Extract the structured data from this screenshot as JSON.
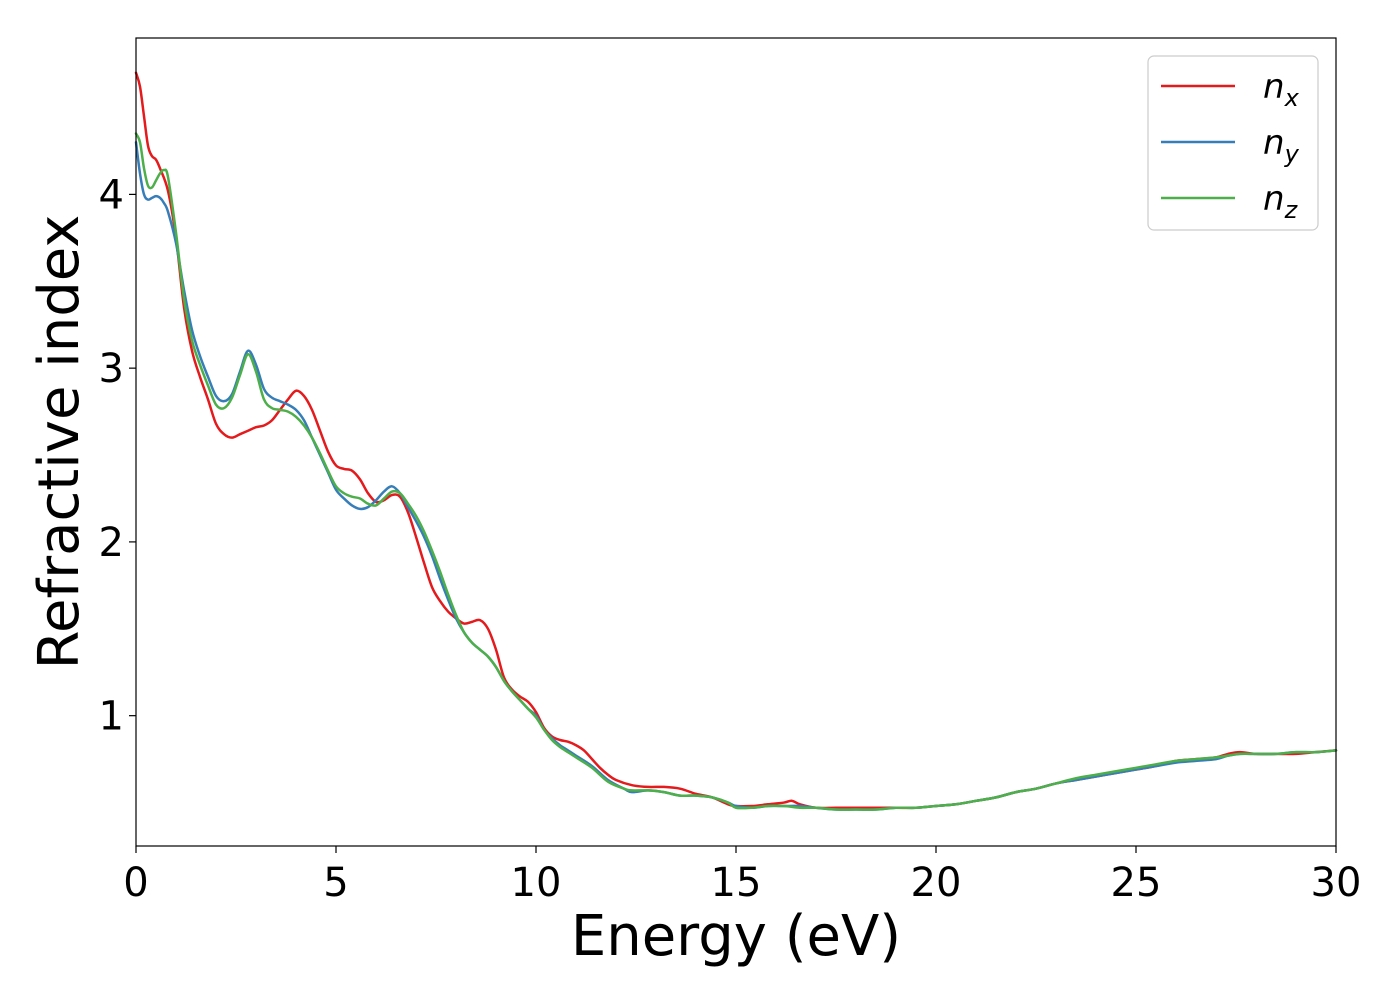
{
  "chart_data": {
    "type": "line",
    "xlabel": "Energy (eV)",
    "ylabel": "Refractive index",
    "xlim": [
      0,
      30
    ],
    "ylim": [
      0.25,
      4.9
    ],
    "xticks": [
      0,
      5,
      10,
      15,
      20,
      25,
      30
    ],
    "yticks": [
      1,
      2,
      3,
      4
    ],
    "grid": false,
    "legend_position": "top-right",
    "series": [
      {
        "name": "n",
        "subscript": "x",
        "color": "#e41a1c",
        "x": [
          0,
          0.1,
          0.2,
          0.3,
          0.4,
          0.5,
          0.6,
          0.8,
          1.0,
          1.2,
          1.4,
          1.6,
          1.8,
          2.0,
          2.2,
          2.4,
          2.6,
          2.8,
          3.0,
          3.2,
          3.4,
          3.6,
          3.8,
          4.0,
          4.2,
          4.4,
          4.6,
          4.8,
          5.0,
          5.2,
          5.4,
          5.6,
          5.8,
          6.0,
          6.2,
          6.4,
          6.6,
          6.8,
          7.0,
          7.2,
          7.4,
          7.6,
          7.8,
          8.0,
          8.2,
          8.4,
          8.6,
          8.8,
          9.0,
          9.2,
          9.4,
          9.6,
          9.8,
          10.0,
          10.2,
          10.4,
          10.6,
          10.8,
          11.0,
          11.2,
          11.4,
          11.6,
          11.8,
          12.0,
          12.4,
          12.8,
          13.2,
          13.6,
          14.0,
          14.4,
          14.8,
          15.0,
          15.4,
          15.8,
          16.2,
          16.4,
          16.6,
          17.0,
          17.5,
          18.0,
          18.5,
          19.0,
          19.5,
          20.0,
          20.5,
          21.0,
          21.5,
          22.0,
          22.5,
          23.0,
          23.5,
          24.0,
          24.5,
          25.0,
          25.5,
          26.0,
          26.5,
          27.0,
          27.3,
          27.6,
          28.0,
          28.5,
          29.0,
          29.5,
          30.0
        ],
        "y": [
          4.7,
          4.62,
          4.45,
          4.28,
          4.22,
          4.2,
          4.15,
          4.02,
          3.75,
          3.35,
          3.1,
          2.95,
          2.82,
          2.68,
          2.62,
          2.6,
          2.62,
          2.64,
          2.66,
          2.67,
          2.7,
          2.76,
          2.82,
          2.87,
          2.84,
          2.76,
          2.64,
          2.52,
          2.44,
          2.42,
          2.41,
          2.36,
          2.28,
          2.23,
          2.24,
          2.27,
          2.26,
          2.17,
          2.03,
          1.88,
          1.74,
          1.66,
          1.6,
          1.56,
          1.53,
          1.54,
          1.55,
          1.5,
          1.38,
          1.22,
          1.15,
          1.11,
          1.08,
          1.02,
          0.93,
          0.88,
          0.86,
          0.85,
          0.83,
          0.8,
          0.75,
          0.7,
          0.66,
          0.63,
          0.6,
          0.59,
          0.59,
          0.58,
          0.55,
          0.53,
          0.49,
          0.48,
          0.48,
          0.49,
          0.5,
          0.51,
          0.49,
          0.47,
          0.47,
          0.47,
          0.47,
          0.47,
          0.47,
          0.48,
          0.49,
          0.51,
          0.53,
          0.56,
          0.58,
          0.61,
          0.63,
          0.65,
          0.67,
          0.69,
          0.71,
          0.74,
          0.75,
          0.76,
          0.78,
          0.79,
          0.78,
          0.78,
          0.78,
          0.79,
          0.8
        ]
      },
      {
        "name": "n",
        "subscript": "y",
        "color": "#377eb8",
        "x": [
          0,
          0.1,
          0.2,
          0.3,
          0.4,
          0.5,
          0.6,
          0.7,
          0.8,
          1.0,
          1.2,
          1.4,
          1.6,
          1.8,
          2.0,
          2.2,
          2.4,
          2.6,
          2.8,
          3.0,
          3.2,
          3.4,
          3.6,
          3.8,
          4.0,
          4.2,
          4.4,
          4.6,
          4.8,
          5.0,
          5.2,
          5.4,
          5.6,
          5.8,
          6.0,
          6.2,
          6.4,
          6.6,
          6.8,
          7.0,
          7.2,
          7.4,
          7.6,
          7.8,
          8.0,
          8.2,
          8.4,
          8.6,
          8.8,
          9.0,
          9.2,
          9.4,
          9.6,
          9.8,
          10.0,
          10.2,
          10.4,
          10.6,
          10.8,
          11.0,
          11.4,
          11.8,
          12.2,
          12.4,
          12.8,
          13.2,
          13.6,
          14.0,
          14.4,
          14.8,
          15.0,
          15.4,
          15.8,
          16.2,
          16.6,
          17.0,
          17.5,
          18.0,
          18.5,
          19.0,
          19.5,
          20.0,
          20.5,
          21.0,
          21.5,
          22.0,
          22.5,
          23.0,
          23.5,
          24.0,
          24.5,
          25.0,
          25.5,
          26.0,
          26.5,
          27.0,
          27.3,
          27.6,
          28.0,
          28.5,
          29.0,
          29.5,
          30.0
        ],
        "y": [
          4.3,
          4.12,
          4.0,
          3.97,
          3.98,
          3.99,
          3.98,
          3.95,
          3.9,
          3.72,
          3.45,
          3.22,
          3.07,
          2.95,
          2.84,
          2.81,
          2.85,
          2.98,
          3.1,
          3.02,
          2.88,
          2.83,
          2.81,
          2.79,
          2.76,
          2.7,
          2.6,
          2.5,
          2.4,
          2.3,
          2.25,
          2.21,
          2.19,
          2.2,
          2.24,
          2.29,
          2.32,
          2.28,
          2.2,
          2.12,
          2.03,
          1.92,
          1.79,
          1.67,
          1.56,
          1.48,
          1.42,
          1.38,
          1.34,
          1.28,
          1.2,
          1.14,
          1.09,
          1.04,
          1.0,
          0.92,
          0.87,
          0.83,
          0.8,
          0.77,
          0.71,
          0.63,
          0.58,
          0.56,
          0.57,
          0.56,
          0.54,
          0.54,
          0.53,
          0.5,
          0.48,
          0.47,
          0.48,
          0.48,
          0.48,
          0.47,
          0.46,
          0.46,
          0.46,
          0.47,
          0.47,
          0.48,
          0.49,
          0.51,
          0.53,
          0.56,
          0.58,
          0.61,
          0.63,
          0.65,
          0.67,
          0.69,
          0.71,
          0.73,
          0.74,
          0.75,
          0.77,
          0.78,
          0.78,
          0.78,
          0.79,
          0.79,
          0.8
        ]
      },
      {
        "name": "n",
        "subscript": "z",
        "color": "#4daf4a",
        "x": [
          0,
          0.1,
          0.2,
          0.3,
          0.4,
          0.5,
          0.6,
          0.7,
          0.8,
          1.0,
          1.2,
          1.4,
          1.6,
          1.8,
          2.0,
          2.2,
          2.4,
          2.6,
          2.8,
          3.0,
          3.2,
          3.4,
          3.6,
          3.8,
          4.0,
          4.2,
          4.4,
          4.6,
          4.8,
          5.0,
          5.2,
          5.4,
          5.6,
          5.8,
          6.0,
          6.2,
          6.4,
          6.6,
          6.8,
          7.0,
          7.2,
          7.4,
          7.6,
          7.8,
          8.0,
          8.2,
          8.4,
          8.6,
          8.8,
          9.0,
          9.2,
          9.4,
          9.6,
          9.8,
          10.0,
          10.2,
          10.4,
          10.6,
          10.8,
          11.0,
          11.4,
          11.8,
          12.2,
          12.4,
          12.8,
          13.2,
          13.6,
          14.0,
          14.4,
          14.8,
          15.0,
          15.4,
          15.8,
          16.2,
          16.6,
          17.0,
          17.5,
          18.0,
          18.5,
          19.0,
          19.5,
          20.0,
          20.5,
          21.0,
          21.5,
          22.0,
          22.5,
          23.0,
          23.5,
          24.0,
          24.5,
          25.0,
          25.5,
          26.0,
          26.5,
          27.0,
          27.3,
          27.6,
          28.0,
          28.5,
          29.0,
          29.5,
          30.0
        ],
        "y": [
          4.35,
          4.3,
          4.15,
          4.05,
          4.04,
          4.08,
          4.12,
          4.14,
          4.1,
          3.78,
          3.4,
          3.16,
          3.02,
          2.9,
          2.79,
          2.77,
          2.83,
          2.96,
          3.08,
          2.98,
          2.82,
          2.77,
          2.76,
          2.75,
          2.72,
          2.67,
          2.6,
          2.51,
          2.41,
          2.32,
          2.28,
          2.26,
          2.25,
          2.22,
          2.21,
          2.25,
          2.29,
          2.28,
          2.22,
          2.15,
          2.06,
          1.95,
          1.83,
          1.7,
          1.58,
          1.48,
          1.42,
          1.38,
          1.34,
          1.28,
          1.2,
          1.14,
          1.09,
          1.04,
          0.99,
          0.92,
          0.86,
          0.82,
          0.79,
          0.76,
          0.7,
          0.62,
          0.58,
          0.57,
          0.57,
          0.56,
          0.54,
          0.54,
          0.53,
          0.5,
          0.47,
          0.47,
          0.48,
          0.48,
          0.47,
          0.47,
          0.46,
          0.46,
          0.46,
          0.47,
          0.47,
          0.48,
          0.49,
          0.51,
          0.53,
          0.56,
          0.58,
          0.61,
          0.64,
          0.66,
          0.68,
          0.7,
          0.72,
          0.74,
          0.75,
          0.76,
          0.77,
          0.78,
          0.78,
          0.78,
          0.79,
          0.79,
          0.8
        ]
      }
    ]
  }
}
